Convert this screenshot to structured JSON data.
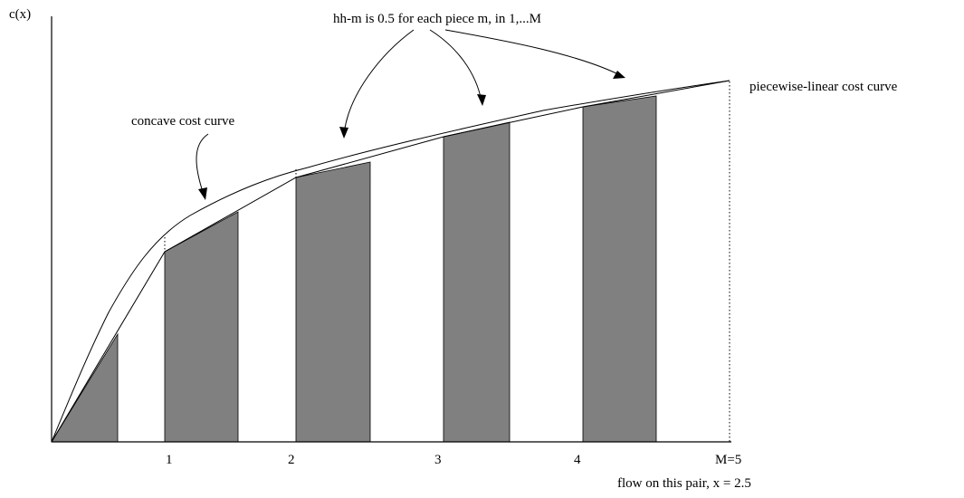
{
  "labels": {
    "y_axis": "c(x)",
    "top_annotation": "hh-m  is  0.5 for each piece  m,  in  1,...M",
    "concave": "concave cost curve",
    "piecewise": "piecewise-linear cost curve",
    "flow": "flow on this pair,   x = 2.5"
  },
  "ticks": [
    "1",
    "2",
    "3",
    "4",
    "M=5"
  ]
}
